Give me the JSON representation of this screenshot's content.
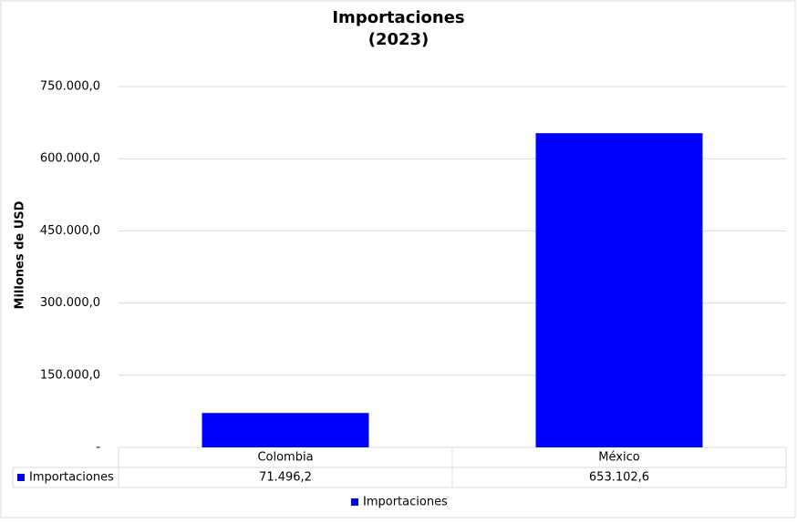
{
  "chart_data": {
    "type": "bar",
    "title": [
      "Importaciones",
      "(2023)"
    ],
    "y_label": "Millones de USD",
    "categories": [
      "Colombia",
      "México"
    ],
    "series": [
      {
        "name": "Importaciones",
        "color": "#0000ff",
        "values": [
          71496.2,
          653102.6
        ],
        "value_labels": [
          "71.496,2",
          "653.102,6"
        ]
      }
    ],
    "ylim": [
      0,
      750000
    ],
    "yticks": [
      {
        "value": 0,
        "label": "-"
      },
      {
        "value": 150000,
        "label": "150.000,0"
      },
      {
        "value": 300000,
        "label": "300.000,0"
      },
      {
        "value": 450000,
        "label": "450.000,0"
      },
      {
        "value": 600000,
        "label": "600.000,0"
      },
      {
        "value": 750000,
        "label": "750.000,0"
      }
    ],
    "grid": true
  }
}
